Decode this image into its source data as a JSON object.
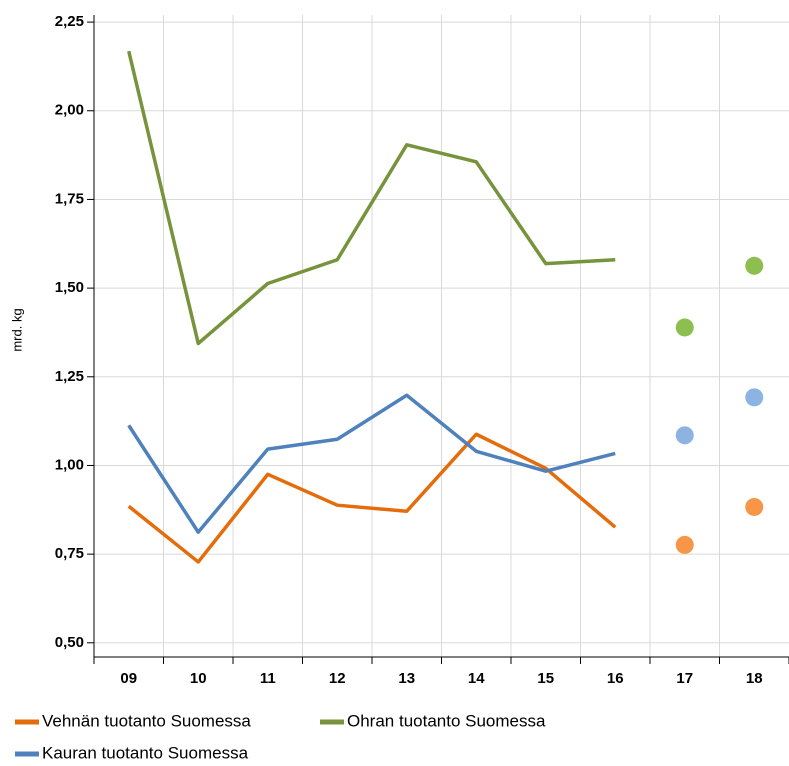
{
  "chart_data": {
    "type": "line",
    "y_label": "mrd. kg",
    "categories": [
      "09",
      "10",
      "11",
      "12",
      "13",
      "14",
      "15",
      "16",
      "17",
      "18"
    ],
    "ylim": [
      0.46,
      2.27
    ],
    "yticks": [
      {
        "value": 0.5,
        "label": "0,50"
      },
      {
        "value": 0.75,
        "label": "0,75"
      },
      {
        "value": 1.0,
        "label": "1,00"
      },
      {
        "value": 1.25,
        "label": "1,25"
      },
      {
        "value": 1.5,
        "label": "1,50"
      },
      {
        "value": 1.75,
        "label": "1,75"
      },
      {
        "value": 2.0,
        "label": "2,00"
      },
      {
        "value": 2.25,
        "label": "2,25"
      }
    ],
    "grid": true,
    "legend": "bottom",
    "series": [
      {
        "name": "Vehnän tuotanto Suomessa",
        "color": "#e46c0a",
        "point_color": "#f79646",
        "values": [
          0.885,
          0.728,
          0.975,
          0.888,
          0.871,
          1.088,
          0.992,
          0.826,
          null,
          null
        ],
        "points": [
          null,
          null,
          null,
          null,
          null,
          null,
          null,
          null,
          0.776,
          0.883
        ]
      },
      {
        "name": "Ohran tuotanto Suomessa",
        "color": "#77933c",
        "point_color": "#8cbf4f",
        "values": [
          2.168,
          1.344,
          1.513,
          1.58,
          1.904,
          1.856,
          1.569,
          1.58,
          null,
          null
        ],
        "points": [
          null,
          null,
          null,
          null,
          null,
          null,
          null,
          null,
          1.389,
          1.563
        ]
      },
      {
        "name": "Kauran tuotanto Suomessa",
        "color": "#4f81bd",
        "point_color": "#8db3e2",
        "values": [
          1.113,
          0.812,
          1.046,
          1.074,
          1.198,
          1.04,
          0.984,
          1.034,
          null,
          null
        ],
        "points": [
          null,
          null,
          null,
          null,
          null,
          null,
          null,
          null,
          1.085,
          1.192
        ]
      }
    ]
  }
}
